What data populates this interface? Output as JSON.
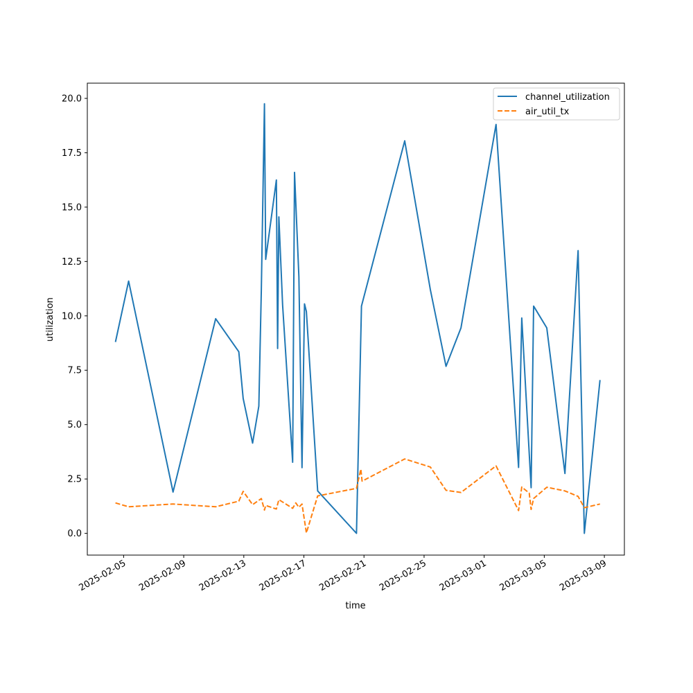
{
  "chart_data": {
    "type": "line",
    "xlabel": "time",
    "ylabel": "utilization",
    "x_type": "date",
    "xlim": [
      "2025-02-02T14:00",
      "2025-03-10T08:00"
    ],
    "ylim": [
      -1.0,
      20.7
    ],
    "xticks": [
      "2025-02-05",
      "2025-02-09",
      "2025-02-13",
      "2025-02-17",
      "2025-02-21",
      "2025-02-25",
      "2025-03-01",
      "2025-03-05",
      "2025-03-09"
    ],
    "yticks": [
      0.0,
      2.5,
      5.0,
      7.5,
      10.0,
      12.5,
      15.0,
      17.5,
      20.0
    ],
    "ytick_labels": [
      "0.0",
      "2.5",
      "5.0",
      "7.5",
      "10.0",
      "12.5",
      "15.0",
      "17.5",
      "20.0"
    ],
    "grid": false,
    "legend": "top-right",
    "series": [
      {
        "name": "channel_utilization",
        "color": "#1f77b4",
        "dash": "solid",
        "points": [
          [
            "2025-02-04T11:00",
            8.8
          ],
          [
            "2025-02-05T08:00",
            11.6
          ],
          [
            "2025-02-08T07:00",
            1.9
          ],
          [
            "2025-02-11T03:00",
            9.87
          ],
          [
            "2025-02-12T16:00",
            8.35
          ],
          [
            "2025-02-12T23:00",
            6.2
          ],
          [
            "2025-02-13T14:00",
            4.15
          ],
          [
            "2025-02-14T00:00",
            5.85
          ],
          [
            "2025-02-14T04:00",
            11.2
          ],
          [
            "2025-02-14T09:00",
            19.75
          ],
          [
            "2025-02-14T11:00",
            12.6
          ],
          [
            "2025-02-15T04:00",
            16.25
          ],
          [
            "2025-02-15T06:00",
            8.5
          ],
          [
            "2025-02-15T08:00",
            14.55
          ],
          [
            "2025-02-15T14:00",
            10.5
          ],
          [
            "2025-02-16T06:00",
            3.27
          ],
          [
            "2025-02-16T09:00",
            16.6
          ],
          [
            "2025-02-16T16:00",
            11.8
          ],
          [
            "2025-02-16T21:00",
            3.02
          ],
          [
            "2025-02-17T01:00",
            10.55
          ],
          [
            "2025-02-17T04:00",
            10.2
          ],
          [
            "2025-02-17T22:00",
            1.95
          ],
          [
            "2025-02-20T12:00",
            0.0
          ],
          [
            "2025-02-20T20:00",
            10.45
          ],
          [
            "2025-02-23T17:00",
            18.05
          ],
          [
            "2025-02-25T10:00",
            11.2
          ],
          [
            "2025-02-26T11:00",
            7.68
          ],
          [
            "2025-02-27T11:00",
            9.45
          ],
          [
            "2025-03-01T19:00",
            18.8
          ],
          [
            "2025-03-03T07:00",
            3.03
          ],
          [
            "2025-03-03T12:00",
            9.9
          ],
          [
            "2025-03-04T03:00",
            2.1
          ],
          [
            "2025-03-04T07:00",
            10.45
          ],
          [
            "2025-03-05T04:00",
            9.45
          ],
          [
            "2025-03-06T09:00",
            2.75
          ],
          [
            "2025-03-07T06:00",
            13.0
          ],
          [
            "2025-03-07T16:00",
            0.0
          ],
          [
            "2025-03-08T17:00",
            7.05
          ]
        ]
      },
      {
        "name": "air_util_tx",
        "color": "#ff7f0e",
        "dash": "dashed",
        "points": [
          [
            "2025-02-04T11:00",
            1.4
          ],
          [
            "2025-02-05T08:00",
            1.22
          ],
          [
            "2025-02-08T07:00",
            1.35
          ],
          [
            "2025-02-11T03:00",
            1.22
          ],
          [
            "2025-02-12T16:00",
            1.48
          ],
          [
            "2025-02-12T23:00",
            1.93
          ],
          [
            "2025-02-13T14:00",
            1.32
          ],
          [
            "2025-02-14T04:00",
            1.6
          ],
          [
            "2025-02-14T09:00",
            1.07
          ],
          [
            "2025-02-14T11:00",
            1.28
          ],
          [
            "2025-02-15T04:00",
            1.12
          ],
          [
            "2025-02-15T08:00",
            1.55
          ],
          [
            "2025-02-16T06:00",
            1.15
          ],
          [
            "2025-02-16T11:00",
            1.4
          ],
          [
            "2025-02-16T16:00",
            1.2
          ],
          [
            "2025-02-16T21:00",
            1.35
          ],
          [
            "2025-02-17T04:00",
            0.02
          ],
          [
            "2025-02-17T22:00",
            1.72
          ],
          [
            "2025-02-20T12:00",
            2.07
          ],
          [
            "2025-02-20T19:00",
            2.95
          ],
          [
            "2025-02-20T21:00",
            2.4
          ],
          [
            "2025-02-23T17:00",
            3.42
          ],
          [
            "2025-02-25T10:00",
            3.05
          ],
          [
            "2025-02-26T11:00",
            1.98
          ],
          [
            "2025-02-27T11:00",
            1.88
          ],
          [
            "2025-03-01T19:00",
            3.1
          ],
          [
            "2025-03-03T07:00",
            1.05
          ],
          [
            "2025-03-03T12:00",
            2.13
          ],
          [
            "2025-03-04T00:00",
            1.85
          ],
          [
            "2025-03-04T03:00",
            1.1
          ],
          [
            "2025-03-04T07:00",
            1.6
          ],
          [
            "2025-03-05T04:00",
            2.12
          ],
          [
            "2025-03-06T09:00",
            1.95
          ],
          [
            "2025-03-07T06:00",
            1.7
          ],
          [
            "2025-03-07T16:00",
            1.18
          ],
          [
            "2025-03-08T17:00",
            1.35
          ]
        ]
      }
    ]
  }
}
